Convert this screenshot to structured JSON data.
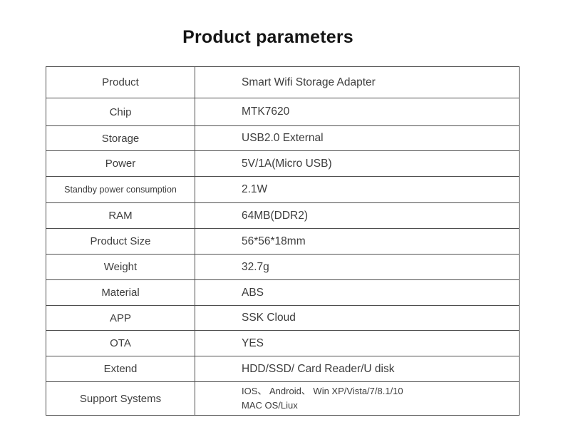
{
  "page": {
    "title": "Product parameters"
  },
  "table": {
    "rows": [
      {
        "label": "Product",
        "value": "Smart Wifi Storage Adapter"
      },
      {
        "label": "Chip",
        "value": "MTK7620"
      },
      {
        "label": "Storage",
        "value": "USB2.0 External"
      },
      {
        "label": "Power",
        "value": "5V/1A(Micro USB)"
      },
      {
        "label": "Standby power consumption",
        "value": "2.1W"
      },
      {
        "label": "RAM",
        "value": "64MB(DDR2)"
      },
      {
        "label": "Product Size",
        "value": "56*56*18mm"
      },
      {
        "label": "Weight",
        "value": "32.7g"
      },
      {
        "label": "Material",
        "value": "ABS"
      },
      {
        "label": "APP",
        "value": "SSK Cloud"
      },
      {
        "label": "OTA",
        "value": "YES"
      },
      {
        "label": "Extend",
        "value": "HDD/SSD/ Card Reader/U disk"
      },
      {
        "label": "Support Systems",
        "value_lines": [
          "IOS、 Android、 Win XP/Vista/7/8.1/10",
          "MAC OS/Liux"
        ]
      }
    ]
  }
}
